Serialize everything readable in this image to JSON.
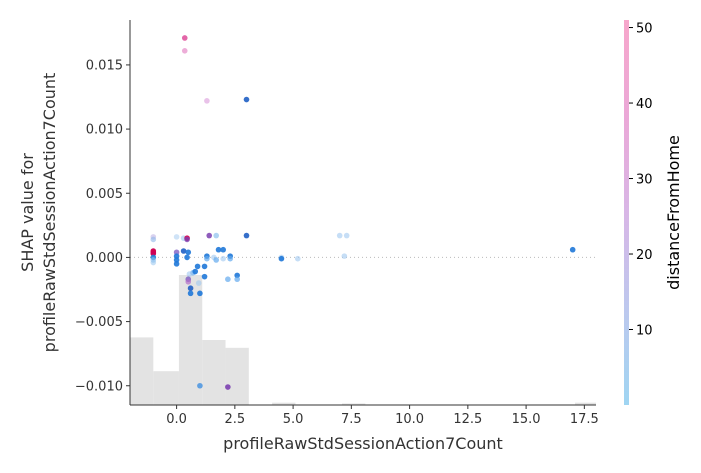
{
  "chart_data": {
    "type": "scatter",
    "title": "",
    "xlabel": "profileRawStdSessionAction7Count",
    "ylabel_lines": [
      "SHAP value for",
      "profileRawStdSessionAction7Count"
    ],
    "xlim": [
      -2,
      18
    ],
    "ylim": [
      -0.0115,
      0.0185
    ],
    "x_ticks": [
      0.0,
      2.5,
      5.0,
      7.5,
      10.0,
      12.5,
      15.0,
      17.5
    ],
    "x_tick_labels": [
      "0.0",
      "2.5",
      "5.0",
      "7.5",
      "10.0",
      "12.5",
      "15.0",
      "17.5"
    ],
    "y_ticks": [
      -0.01,
      -0.005,
      0.0,
      0.005,
      0.01,
      0.015
    ],
    "y_tick_labels": [
      "−0.010",
      "−0.005",
      "0.000",
      "0.005",
      "0.010",
      "0.015"
    ],
    "zero_line": true,
    "histogram": {
      "color": "#e3e3e3",
      "bins": [
        {
          "x0": -2.0,
          "x1": -1.0,
          "h": 0.52
        },
        {
          "x0": -1.0,
          "x1": 0.1,
          "h": 0.26
        },
        {
          "x0": 0.1,
          "x1": 1.1,
          "h": 1.0
        },
        {
          "x0": 1.1,
          "x1": 2.1,
          "h": 0.5
        },
        {
          "x0": 2.1,
          "x1": 3.1,
          "h": 0.44
        },
        {
          "x0": 4.1,
          "x1": 5.1,
          "h": 0.018
        },
        {
          "x0": 7.1,
          "x1": 8.1,
          "h": 0.01
        },
        {
          "x0": 17.1,
          "x1": 18.0,
          "h": 0.018
        }
      ]
    },
    "colorbar": {
      "title": "distanceFromHome",
      "min": 0,
      "max": 51,
      "ticks": [
        10,
        20,
        30,
        40,
        50
      ],
      "tick_labels": [
        "10",
        "20",
        "30",
        "40",
        "50"
      ],
      "colors": [
        "#9fd5f2",
        "#bdc8ee",
        "#d8b6e6",
        "#eba8d7",
        "#f7a7cb"
      ]
    },
    "points": [
      {
        "x": -1.0,
        "y": 0.0016,
        "c": "#b4a6e0",
        "o": 0.5
      },
      {
        "x": -1.0,
        "y": 0.0014,
        "c": "#8fb8ea",
        "o": 0.6
      },
      {
        "x": -1.0,
        "y": 0.0005,
        "c": "#cc0055",
        "o": 0.95
      },
      {
        "x": -1.0,
        "y": 0.0004,
        "c": "#d6004a",
        "o": 0.95
      },
      {
        "x": -1.0,
        "y": 0.0003,
        "c": "#cc0055",
        "o": 0.95
      },
      {
        "x": -1.0,
        "y": 0.0,
        "c": "#1e7fd8",
        "o": 0.9
      },
      {
        "x": -1.0,
        "y": -0.0002,
        "c": "#8cc0ee",
        "o": 0.6
      },
      {
        "x": -1.0,
        "y": -0.0004,
        "c": "#8cc0ee",
        "o": 0.5
      },
      {
        "x": 0.0,
        "y": 0.0016,
        "c": "#a0c8f0",
        "o": 0.5
      },
      {
        "x": 0.0,
        "y": 0.0004,
        "c": "#7f5fc4",
        "o": 0.8
      },
      {
        "x": 0.0,
        "y": 0.0001,
        "c": "#1f78d8",
        "o": 0.9
      },
      {
        "x": 0.0,
        "y": -0.0002,
        "c": "#1f78d8",
        "o": 0.9
      },
      {
        "x": 0.0,
        "y": -0.0005,
        "c": "#1f78d8",
        "o": 0.9
      },
      {
        "x": 0.35,
        "y": 0.0171,
        "c": "#e0559f",
        "o": 0.9
      },
      {
        "x": 0.35,
        "y": 0.0161,
        "c": "#e58ac8",
        "o": 0.7
      },
      {
        "x": 0.3,
        "y": 0.0015,
        "c": "#a0c8f0",
        "o": 0.6
      },
      {
        "x": 0.45,
        "y": 0.0015,
        "c": "#d6004a",
        "o": 0.9
      },
      {
        "x": 0.45,
        "y": 0.0014,
        "c": "#7b3fb0",
        "o": 0.8
      },
      {
        "x": 0.3,
        "y": 0.0005,
        "c": "#1f5fc4",
        "o": 0.9
      },
      {
        "x": 0.5,
        "y": 0.0004,
        "c": "#1f78d8",
        "o": 0.9
      },
      {
        "x": 0.45,
        "y": 0.0,
        "c": "#1f78d8",
        "o": 0.9
      },
      {
        "x": 0.7,
        "y": -0.0012,
        "c": "#63aaee",
        "o": 0.7
      },
      {
        "x": 0.55,
        "y": -0.0013,
        "c": "#a0c8f0",
        "o": 0.6
      },
      {
        "x": 0.5,
        "y": -0.0017,
        "c": "#7c5cc0",
        "o": 0.8
      },
      {
        "x": 0.5,
        "y": -0.0019,
        "c": "#b06cc8",
        "o": 0.7
      },
      {
        "x": 0.6,
        "y": -0.0024,
        "c": "#1f5fc4",
        "o": 0.9
      },
      {
        "x": 0.6,
        "y": -0.0028,
        "c": "#1f78d8",
        "o": 0.9
      },
      {
        "x": 0.8,
        "y": -0.0011,
        "c": "#1f78d8",
        "o": 0.9
      },
      {
        "x": 0.9,
        "y": -0.0007,
        "c": "#1f78d8",
        "o": 0.9
      },
      {
        "x": 0.95,
        "y": -0.002,
        "c": "#a0c8f0",
        "o": 0.6
      },
      {
        "x": 1.0,
        "y": -0.0028,
        "c": "#1f78d8",
        "o": 0.9
      },
      {
        "x": 1.0,
        "y": -0.01,
        "c": "#3f8fe0",
        "o": 0.8
      },
      {
        "x": 1.3,
        "y": 0.0122,
        "c": "#e0a8e0",
        "o": 0.7
      },
      {
        "x": 1.4,
        "y": 0.0017,
        "c": "#7b3fb0",
        "o": 0.85
      },
      {
        "x": 1.3,
        "y": 0.0001,
        "c": "#1f78d8",
        "o": 0.9
      },
      {
        "x": 1.3,
        "y": -0.0001,
        "c": "#63aaee",
        "o": 0.7
      },
      {
        "x": 1.2,
        "y": -0.0007,
        "c": "#1f78d8",
        "o": 0.9
      },
      {
        "x": 1.2,
        "y": -0.0015,
        "c": "#1f78d8",
        "o": 0.9
      },
      {
        "x": 1.7,
        "y": 0.0017,
        "c": "#8cc0ee",
        "o": 0.7
      },
      {
        "x": 1.8,
        "y": 0.0006,
        "c": "#1f78d8",
        "o": 0.9
      },
      {
        "x": 1.6,
        "y": 0.0,
        "c": "#a0c8f0",
        "o": 0.6
      },
      {
        "x": 1.7,
        "y": -0.0002,
        "c": "#63aaee",
        "o": 0.7
      },
      {
        "x": 2.0,
        "y": 0.0006,
        "c": "#1f78d8",
        "o": 0.9
      },
      {
        "x": 2.0,
        "y": -0.0001,
        "c": "#a0c8f0",
        "o": 0.6
      },
      {
        "x": 2.2,
        "y": -0.0017,
        "c": "#63aaee",
        "o": 0.7
      },
      {
        "x": 2.3,
        "y": 0.0001,
        "c": "#1f78d8",
        "o": 0.9
      },
      {
        "x": 2.3,
        "y": -0.0001,
        "c": "#63aaee",
        "o": 0.7
      },
      {
        "x": 2.6,
        "y": -0.0014,
        "c": "#1f78d8",
        "o": 0.9
      },
      {
        "x": 2.6,
        "y": -0.0017,
        "c": "#63aaee",
        "o": 0.7
      },
      {
        "x": 2.2,
        "y": -0.0101,
        "c": "#7b3fb0",
        "o": 0.9
      },
      {
        "x": 3.0,
        "y": 0.0123,
        "c": "#1f5fc4",
        "o": 0.9
      },
      {
        "x": 3.0,
        "y": 0.0017,
        "c": "#1f5fc4",
        "o": 0.9
      },
      {
        "x": 4.5,
        "y": 0.0,
        "c": "#a0c8f0",
        "o": 0.6
      },
      {
        "x": 4.5,
        "y": -0.0001,
        "c": "#1f78d8",
        "o": 0.9
      },
      {
        "x": 5.2,
        "y": -0.0001,
        "c": "#a0c8f0",
        "o": 0.6
      },
      {
        "x": 7.0,
        "y": 0.0017,
        "c": "#a0c8f0",
        "o": 0.6
      },
      {
        "x": 7.3,
        "y": 0.0017,
        "c": "#a0c8f0",
        "o": 0.6
      },
      {
        "x": 7.2,
        "y": 0.0001,
        "c": "#a0c8f0",
        "o": 0.6
      },
      {
        "x": 17.0,
        "y": 0.0006,
        "c": "#1f78d8",
        "o": 0.9
      }
    ]
  }
}
